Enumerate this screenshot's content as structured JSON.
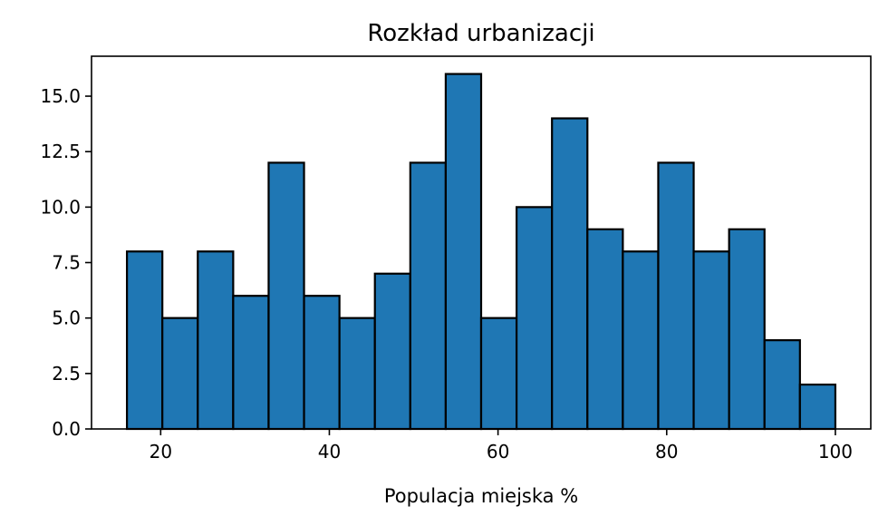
{
  "chart_data": {
    "type": "bar",
    "title": "Rozkład urbanizacji",
    "xlabel": "Populacja miejska %",
    "ylabel": "",
    "bin_edges": [
      16.0,
      20.2,
      24.4,
      28.6,
      32.8,
      37.0,
      41.2,
      45.4,
      49.6,
      53.8,
      58.0,
      62.2,
      66.4,
      70.6,
      74.8,
      79.0,
      83.2,
      87.4,
      91.6,
      95.8,
      100.0
    ],
    "values": [
      8,
      5,
      8,
      6,
      12,
      6,
      5,
      7,
      12,
      16,
      5,
      10,
      14,
      9,
      8,
      12,
      8,
      9,
      4,
      2
    ],
    "xlim": [
      11.8,
      104.2
    ],
    "ylim": [
      0,
      16.8
    ],
    "xticks": [
      20,
      40,
      60,
      80,
      100
    ],
    "xtick_labels": [
      "20",
      "40",
      "60",
      "80",
      "100"
    ],
    "yticks": [
      0,
      2.5,
      5,
      7.5,
      10,
      12.5,
      15
    ],
    "ytick_labels": [
      "0.0",
      "2.5",
      "5.0",
      "7.5",
      "10.0",
      "12.5",
      "15.0"
    ],
    "bar_color": "#1f77b4",
    "edge_color": "#000000",
    "grid": false
  }
}
